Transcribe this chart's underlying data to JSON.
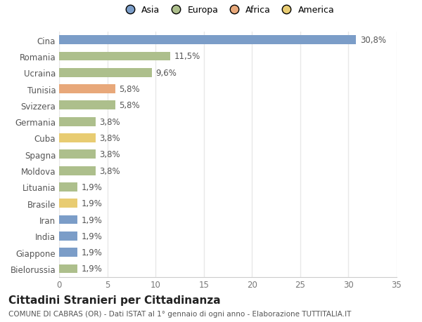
{
  "countries": [
    "Cina",
    "Romania",
    "Ucraina",
    "Tunisia",
    "Svizzera",
    "Germania",
    "Cuba",
    "Spagna",
    "Moldova",
    "Lituania",
    "Brasile",
    "Iran",
    "India",
    "Giappone",
    "Bielorussia"
  ],
  "values": [
    30.8,
    11.5,
    9.6,
    5.8,
    5.8,
    3.8,
    3.8,
    3.8,
    3.8,
    1.9,
    1.9,
    1.9,
    1.9,
    1.9,
    1.9
  ],
  "labels": [
    "30,8%",
    "11,5%",
    "9,6%",
    "5,8%",
    "5,8%",
    "3,8%",
    "3,8%",
    "3,8%",
    "3,8%",
    "1,9%",
    "1,9%",
    "1,9%",
    "1,9%",
    "1,9%",
    "1,9%"
  ],
  "colors": [
    "#7b9dc8",
    "#adbf8c",
    "#adbf8c",
    "#e8a87a",
    "#adbf8c",
    "#adbf8c",
    "#e8cc72",
    "#adbf8c",
    "#adbf8c",
    "#adbf8c",
    "#e8cc72",
    "#7b9dc8",
    "#7b9dc8",
    "#7b9dc8",
    "#adbf8c"
  ],
  "legend_labels": [
    "Asia",
    "Europa",
    "Africa",
    "America"
  ],
  "legend_colors": [
    "#7b9dc8",
    "#adbf8c",
    "#e8a87a",
    "#e8cc72"
  ],
  "title": "Cittadini Stranieri per Cittadinanza",
  "subtitle": "COMUNE DI CABRAS (OR) - Dati ISTAT al 1° gennaio di ogni anno - Elaborazione TUTTITALIA.IT",
  "xlim": [
    0,
    35
  ],
  "xticks": [
    0,
    5,
    10,
    15,
    20,
    25,
    30,
    35
  ],
  "background_color": "#ffffff",
  "plot_bg_color": "#ffffff",
  "grid_color": "#e8e8e8",
  "bar_height": 0.55,
  "label_fontsize": 8.5,
  "ytick_fontsize": 8.5,
  "xtick_fontsize": 8.5,
  "title_fontsize": 11,
  "subtitle_fontsize": 7.5
}
